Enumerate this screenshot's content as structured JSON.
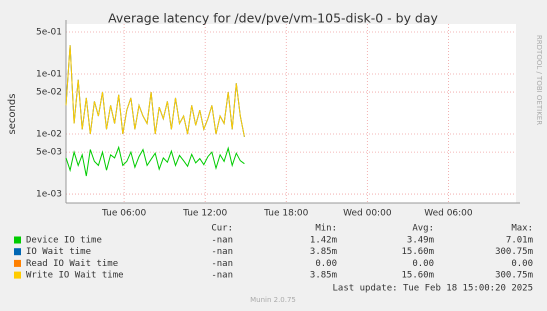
{
  "chart_data": {
    "type": "line",
    "title": "Average latency for /dev/pve/vm-105-disk-0 - by day",
    "y_label": "seconds",
    "side_text": "RRDTOOL / TOBI OETIKER",
    "log_y": true,
    "grid": true,
    "x": [
      1.7,
      2.0,
      2.3,
      2.6,
      2.9,
      3.2,
      3.5,
      3.8,
      4.1,
      4.4,
      4.7,
      5.0,
      5.3,
      5.6,
      5.9,
      6.2,
      6.5,
      6.8,
      7.1,
      7.4,
      7.7,
      8.0,
      8.3,
      8.6,
      8.9,
      9.2,
      9.5,
      9.8,
      10.1,
      10.4,
      10.7,
      11.0,
      11.3,
      11.6,
      11.9,
      12.2,
      12.5,
      12.8,
      13.1,
      13.4,
      13.7,
      14.0,
      14.3,
      14.6,
      14.9
    ],
    "xlim": [
      1.7,
      35.0
    ],
    "xticks": [
      {
        "value": 6,
        "label": "Tue 06:00"
      },
      {
        "value": 12,
        "label": "Tue 12:00"
      },
      {
        "value": 18,
        "label": "Tue 18:00"
      },
      {
        "value": 24,
        "label": "Wed 00:00"
      },
      {
        "value": 30,
        "label": "Wed 06:00"
      }
    ],
    "ylim": [
      0.00071,
      0.68
    ],
    "yticks": [
      {
        "value": 0.5,
        "label": "5e-01"
      },
      {
        "value": 0.1,
        "label": "1e-01"
      },
      {
        "value": 0.05,
        "label": "5e-02"
      },
      {
        "value": 0.01,
        "label": "1e-02"
      },
      {
        "value": 0.005,
        "label": "5e-03"
      },
      {
        "value": 0.001,
        "label": "1e-03"
      }
    ],
    "series": [
      {
        "name": "Device IO time",
        "color": "#00cc00",
        "values": [
          0.004,
          0.0025,
          0.005,
          0.003,
          0.0045,
          0.002,
          0.0055,
          0.0035,
          0.003,
          0.005,
          0.0025,
          0.0045,
          0.004,
          0.006,
          0.003,
          0.0035,
          0.005,
          0.0028,
          0.0042,
          0.0055,
          0.003,
          0.0038,
          0.0048,
          0.0026,
          0.004,
          0.0034,
          0.0052,
          0.003,
          0.0044,
          0.0036,
          0.0029,
          0.0046,
          0.0033,
          0.0039,
          0.0031,
          0.0042,
          0.005,
          0.0027,
          0.0045,
          0.0035,
          0.0058,
          0.003,
          0.0048,
          0.0036,
          0.0032
        ]
      },
      {
        "name": "IO Wait time",
        "color": "#0066b3",
        "values": [
          0.03,
          0.3,
          0.015,
          0.08,
          0.012,
          0.04,
          0.01,
          0.035,
          0.02,
          0.05,
          0.012,
          0.03,
          0.015,
          0.045,
          0.01,
          0.025,
          0.04,
          0.012,
          0.03,
          0.02,
          0.015,
          0.05,
          0.01,
          0.028,
          0.018,
          0.035,
          0.012,
          0.04,
          0.015,
          0.02,
          0.01,
          0.03,
          0.014,
          0.025,
          0.012,
          0.018,
          0.03,
          0.01,
          0.02,
          0.015,
          0.05,
          0.012,
          0.07,
          0.02,
          0.009
        ]
      },
      {
        "name": "Read IO Wait time",
        "color": "#ff8000",
        "values": [
          null,
          null,
          null,
          null,
          null,
          null,
          null,
          null,
          null,
          null,
          null,
          null,
          null,
          null,
          null,
          null,
          null,
          null,
          null,
          null,
          null,
          null,
          null,
          null,
          null,
          null,
          null,
          null,
          null,
          null,
          null,
          null,
          null,
          null,
          null,
          null,
          null,
          null,
          null,
          null,
          null,
          null,
          null,
          null,
          null
        ]
      },
      {
        "name": "Write IO Wait time",
        "color": "#ffcc00",
        "values": [
          0.03,
          0.3,
          0.015,
          0.08,
          0.012,
          0.04,
          0.01,
          0.035,
          0.02,
          0.05,
          0.012,
          0.03,
          0.015,
          0.045,
          0.01,
          0.025,
          0.04,
          0.012,
          0.03,
          0.02,
          0.015,
          0.05,
          0.01,
          0.028,
          0.018,
          0.035,
          0.012,
          0.04,
          0.015,
          0.02,
          0.01,
          0.03,
          0.014,
          0.025,
          0.012,
          0.018,
          0.03,
          0.01,
          0.02,
          0.015,
          0.05,
          0.012,
          0.07,
          0.02,
          0.009
        ]
      }
    ],
    "summary": {
      "headers": [
        "Cur:",
        "Min:",
        "Avg:",
        "Max:"
      ],
      "rows": [
        [
          "-nan",
          "1.42m",
          "3.49m",
          "7.01m"
        ],
        [
          "-nan",
          "3.85m",
          "15.60m",
          "300.75m"
        ],
        [
          "-nan",
          "0.00",
          "0.00",
          "0.00"
        ],
        [
          "-nan",
          "3.85m",
          "15.60m",
          "300.75m"
        ]
      ]
    },
    "last_update": "Last update: Tue Feb 18 15:00:20 2025",
    "footer": "Munin 2.0.75"
  }
}
